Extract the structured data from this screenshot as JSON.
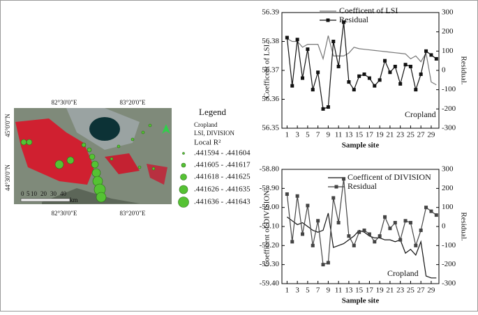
{
  "map": {
    "lon_labels": [
      "82°30'0\"E",
      "83°20'0\"E"
    ],
    "lat_labels": [
      "45°0'0\"N",
      "44°30'0\"N"
    ],
    "legend": {
      "title": "Legend",
      "layer": "Cropland",
      "metrics": "LSI, DIVISION",
      "field": "Local R²",
      "classes": [
        ".441594 - .441604",
        ".441605 - .441617",
        ".441618 - .441625",
        ".441626 - .441635",
        ".441636 - .441643"
      ]
    },
    "scale_labels": [
      "0",
      "5",
      "10",
      "20",
      "30",
      "40",
      "km"
    ]
  },
  "chart_data": [
    {
      "type": "line",
      "x_label": "Sample site",
      "y_label": "Coefficent of LSI.",
      "y2_label": "Residual.",
      "annotation": "Cropland",
      "x": [
        1,
        2,
        3,
        4,
        5,
        6,
        7,
        8,
        9,
        10,
        11,
        12,
        13,
        14,
        15,
        16,
        17,
        18,
        19,
        20,
        21,
        22,
        23,
        24,
        25,
        26,
        27,
        28,
        29,
        30
      ],
      "xlim": [
        0,
        30.5
      ],
      "xticks": [
        1,
        3,
        5,
        7,
        9,
        11,
        13,
        15,
        17,
        19,
        21,
        23,
        25,
        27,
        29
      ],
      "ylim": [
        56.35,
        56.39
      ],
      "yticks": [
        56.35,
        56.36,
        56.37,
        56.38,
        56.39
      ],
      "y2lim": [
        -300,
        300
      ],
      "y2ticks": [
        -300,
        -200,
        -100,
        0,
        100,
        200,
        300
      ],
      "series": [
        {
          "name": "Coefficent of LSI",
          "color": "#777777",
          "marker": "none",
          "values": [
            56.381,
            56.38,
            56.38,
            56.378,
            56.379,
            56.379,
            56.379,
            56.374,
            56.382,
            56.375,
            56.375,
            56.375,
            56.376,
            56.378,
            56.3775,
            56.3773,
            56.3771,
            56.3769,
            56.3767,
            56.3765,
            56.3763,
            56.3761,
            56.3759,
            56.3757,
            56.374,
            56.375,
            56.373,
            56.376,
            56.366,
            56.365
          ]
        },
        {
          "name": "Residual",
          "color": "#111111",
          "marker": "square",
          "axis": "y2",
          "values": [
            170,
            -80,
            160,
            -40,
            110,
            -100,
            -10,
            -200,
            -190,
            150,
            20,
            250,
            -60,
            -100,
            -30,
            -20,
            -40,
            -80,
            -50,
            50,
            -10,
            20,
            -70,
            30,
            20,
            -100,
            -20,
            100,
            80,
            60
          ]
        }
      ]
    },
    {
      "type": "line",
      "x_label": "Sample site",
      "y_label": "Coefficent of DIVISION .",
      "y2_label": "Residual.",
      "annotation": "Cropland",
      "x": [
        1,
        2,
        3,
        4,
        5,
        6,
        7,
        8,
        9,
        10,
        11,
        12,
        13,
        14,
        15,
        16,
        17,
        18,
        19,
        20,
        21,
        22,
        23,
        24,
        25,
        26,
        27,
        28,
        29,
        30
      ],
      "xlim": [
        0,
        30.5
      ],
      "xticks": [
        1,
        3,
        5,
        7,
        9,
        11,
        13,
        15,
        17,
        19,
        21,
        23,
        25,
        27,
        29
      ],
      "ylim": [
        -59.4,
        -58.8
      ],
      "yticks": [
        {
          "value": -58.8,
          "label": "-58.80"
        },
        {
          "value": -58.9,
          "label": "-58.90"
        },
        {
          "value": -59,
          "label": "-59.00"
        },
        {
          "value": -59.1,
          "label": "-59.10"
        },
        {
          "value": -59.2,
          "label": "-59.20"
        },
        {
          "value": -59.3,
          "label": "-59.30"
        },
        {
          "value": -59.4,
          "label": "-59.40"
        }
      ],
      "y2lim": [
        -300,
        300
      ],
      "y2ticks": [
        -300,
        -200,
        -100,
        0,
        100,
        200,
        300
      ],
      "series": [
        {
          "name": "Coefficent of DIVISION",
          "color": "#111111",
          "marker": "none",
          "values": [
            -59.05,
            -59.07,
            -59.09,
            -59.08,
            -59.1,
            -59.12,
            -59.13,
            -59.12,
            -59.03,
            -59.21,
            -59.2,
            -59.19,
            -59.17,
            -59.15,
            -59.12,
            -59.13,
            -59.15,
            -59.16,
            -59.16,
            -59.17,
            -59.17,
            -59.18,
            -59.17,
            -59.24,
            -59.22,
            -59.25,
            -59.18,
            -59.36,
            -59.37,
            -59.37
          ]
        },
        {
          "name": "Residual",
          "color": "#444444",
          "marker": "square",
          "axis": "y2",
          "values": [
            170,
            -80,
            160,
            -40,
            110,
            -100,
            30,
            -200,
            -190,
            150,
            20,
            250,
            -50,
            -100,
            -30,
            -20,
            -40,
            -80,
            -50,
            50,
            -10,
            20,
            -70,
            30,
            20,
            -100,
            -20,
            100,
            80,
            60
          ]
        }
      ]
    }
  ]
}
